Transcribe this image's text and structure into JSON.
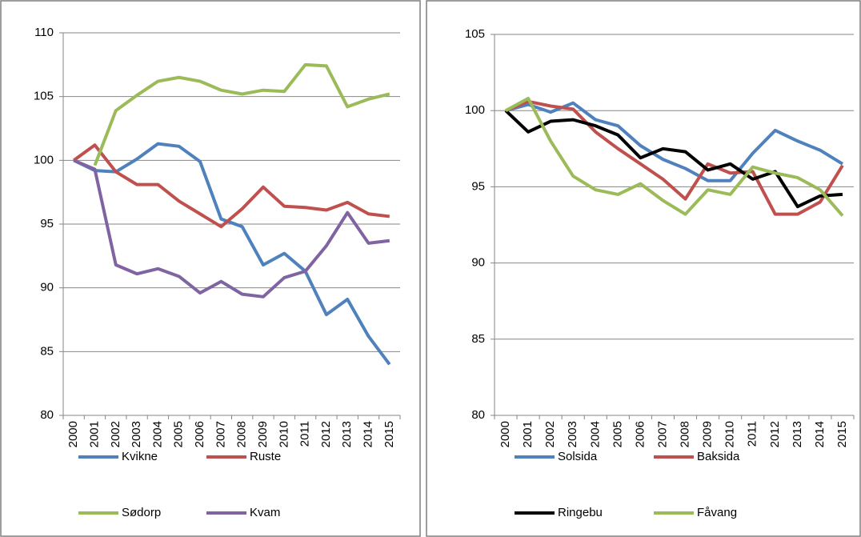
{
  "chart_data": [
    {
      "type": "line",
      "categories": [
        "2000",
        "2001",
        "2002",
        "2003",
        "2004",
        "2005",
        "2006",
        "2007",
        "2008",
        "2009",
        "2010",
        "2011",
        "2012",
        "2013",
        "2014",
        "2015"
      ],
      "ylim": [
        80,
        110
      ],
      "yticks": [
        80,
        85,
        90,
        95,
        100,
        105,
        110
      ],
      "grid": true,
      "legend": "bottom",
      "series": [
        {
          "name": "Kvikne",
          "color": "#4f81bd",
          "values": [
            100,
            99.2,
            99.1,
            100.1,
            101.3,
            101.1,
            99.9,
            95.4,
            94.8,
            91.8,
            92.7,
            91.3,
            87.9,
            89.1,
            86.2,
            84.0
          ]
        },
        {
          "name": "Ruste",
          "color": "#c0504d",
          "values": [
            100,
            101.2,
            99.1,
            98.1,
            98.1,
            96.8,
            95.8,
            94.8,
            96.2,
            97.9,
            96.4,
            96.3,
            96.1,
            96.7,
            95.8,
            95.6
          ]
        },
        {
          "name": "Sødorp",
          "color": "#9bbb59",
          "values": [
            null,
            99.6,
            103.9,
            105.1,
            106.2,
            106.5,
            106.2,
            105.5,
            105.2,
            105.5,
            105.4,
            107.5,
            107.4,
            104.2,
            104.8,
            105.2
          ]
        },
        {
          "name": "Kvam",
          "color": "#8064a2",
          "values": [
            100,
            99.3,
            91.8,
            91.1,
            91.5,
            90.9,
            89.6,
            90.5,
            89.5,
            89.3,
            90.8,
            91.3,
            93.3,
            95.9,
            93.5,
            93.7
          ]
        }
      ]
    },
    {
      "type": "line",
      "categories": [
        "2000",
        "2001",
        "2002",
        "2003",
        "2004",
        "2005",
        "2006",
        "2007",
        "2008",
        "2009",
        "2010",
        "2011",
        "2012",
        "2013",
        "2014",
        "2015"
      ],
      "ylim": [
        80,
        105
      ],
      "yticks": [
        80,
        85,
        90,
        95,
        100,
        105
      ],
      "grid": true,
      "legend": "bottom",
      "series": [
        {
          "name": "Solsida",
          "color": "#4f81bd",
          "values": [
            100,
            100.4,
            99.9,
            100.5,
            99.4,
            99.0,
            97.7,
            96.8,
            96.2,
            95.4,
            95.4,
            97.2,
            98.7,
            98.0,
            97.4,
            96.5
          ]
        },
        {
          "name": "Baksida",
          "color": "#c0504d",
          "values": [
            100,
            100.6,
            100.3,
            100.1,
            98.6,
            97.5,
            96.5,
            95.5,
            94.2,
            96.5,
            95.9,
            96.0,
            93.2,
            93.2,
            94.0,
            96.4
          ]
        },
        {
          "name": "Ringebu",
          "color": "#000000",
          "values": [
            100,
            98.6,
            99.3,
            99.4,
            99.0,
            98.4,
            96.9,
            97.5,
            97.3,
            96.1,
            96.5,
            95.5,
            96.0,
            93.7,
            94.4,
            94.5
          ]
        },
        {
          "name": "Fåvang",
          "color": "#9bbb59",
          "values": [
            100,
            100.8,
            98.0,
            95.7,
            94.8,
            94.5,
            95.2,
            94.1,
            93.2,
            94.8,
            94.5,
            96.3,
            95.9,
            95.6,
            94.8,
            93.1
          ]
        }
      ]
    }
  ]
}
